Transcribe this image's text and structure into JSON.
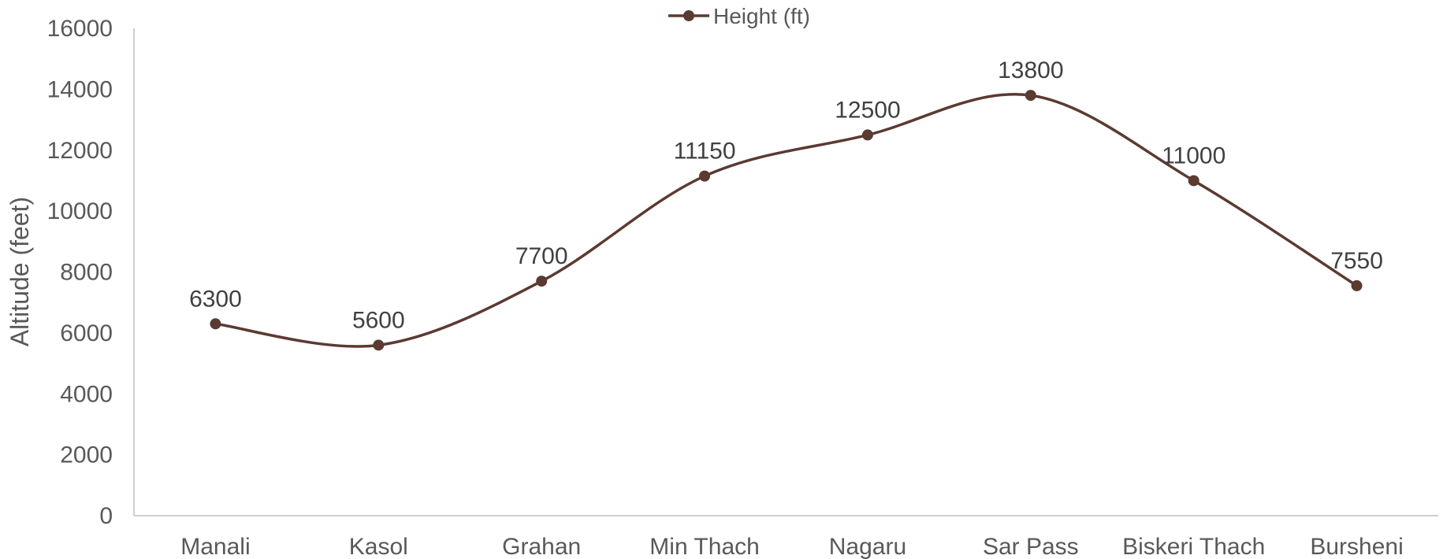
{
  "chart_data": {
    "type": "line",
    "smooth": true,
    "categories": [
      "Manali",
      "Kasol",
      "Grahan",
      "Min Thach",
      "Nagaru",
      "Sar Pass",
      "Biskeri Thach",
      "Bursheni"
    ],
    "series": [
      {
        "name": "Height (ft)",
        "values": [
          6300,
          5600,
          7700,
          11150,
          12500,
          13800,
          11000,
          7550
        ],
        "color": "#5b3a32",
        "marker": "circle"
      }
    ],
    "data_labels": [
      "6300",
      "5600",
      "7700",
      "11150",
      "12500",
      "13800",
      "11000",
      "7550"
    ],
    "ylabel": "Altitude (feet)",
    "xlabel": "",
    "ylim": [
      0,
      16000
    ],
    "yticks": [
      0,
      2000,
      4000,
      6000,
      8000,
      10000,
      12000,
      14000,
      16000
    ],
    "ytick_labels": [
      "0",
      "2000",
      "4000",
      "6000",
      "8000",
      "10000",
      "12000",
      "14000",
      "16000"
    ],
    "grid": false,
    "legend_position": "top-center",
    "axis_color": "#bfbfbf",
    "text_color": "#595959"
  }
}
